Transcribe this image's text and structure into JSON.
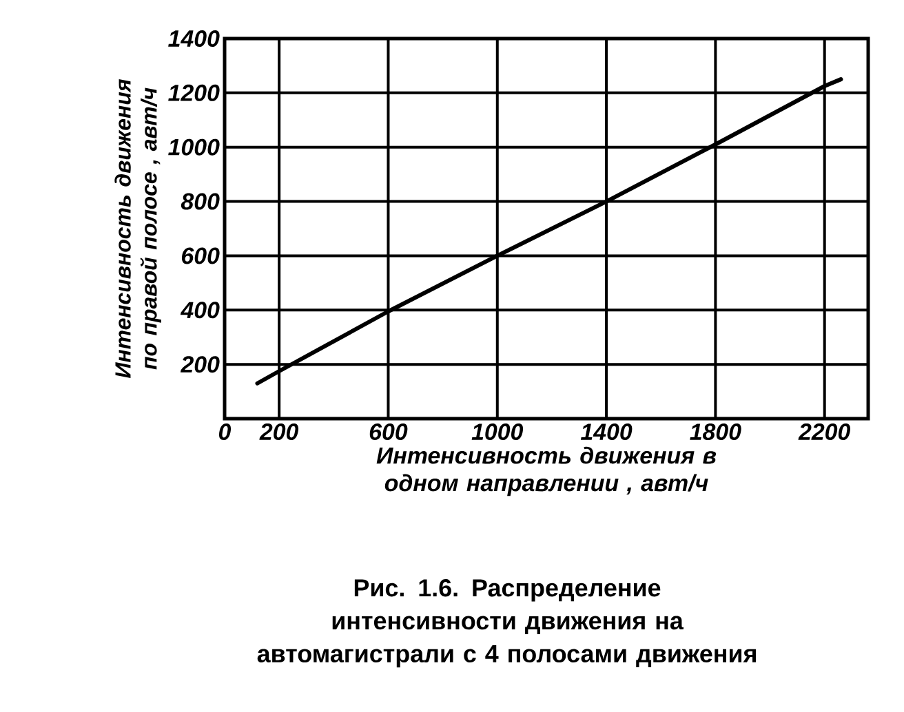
{
  "chart_data": {
    "type": "line",
    "title": "Рис. 1.6. Распределение интенсивности движения на автомагистрали с 4 полосами движения",
    "xlabel": "Интенсивность движения в одном направлении , авт/ч",
    "ylabel": "Интенсивность движения по правой полосе , авт/ч",
    "x": [
      120,
      200,
      600,
      1000,
      1400,
      1800,
      2200,
      2260
    ],
    "series": [
      {
        "color": "#000000",
        "values": [
          130,
          175,
          395,
          600,
          800,
          1010,
          1225,
          1250
        ]
      }
    ],
    "xlim": [
      0,
      2360
    ],
    "ylim": [
      0,
      1400
    ],
    "xticks": [
      0,
      200,
      600,
      1000,
      1400,
      1800,
      2200
    ],
    "yticks": [
      200,
      400,
      600,
      800,
      1000,
      1200,
      1400
    ],
    "grid": true
  }
}
